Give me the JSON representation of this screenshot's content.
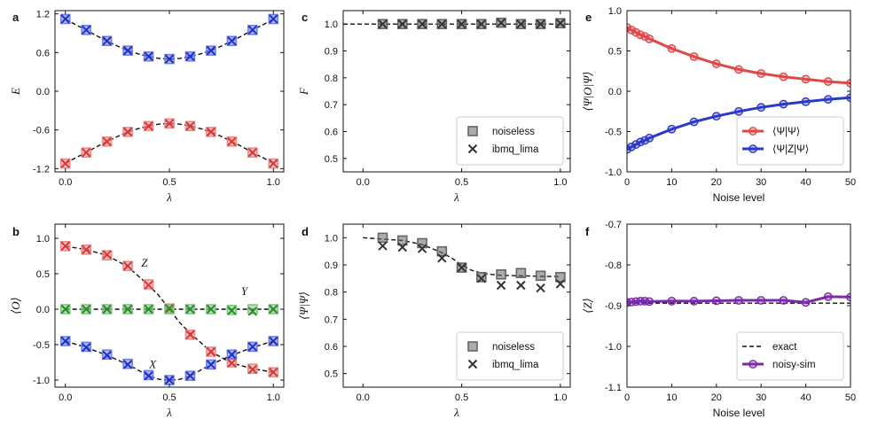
{
  "figure": {
    "panels": [
      "a",
      "b",
      "c",
      "d",
      "e",
      "f"
    ]
  },
  "chart_data": [
    {
      "id": "a",
      "letter": "a",
      "type": "scatter",
      "xlabel": "λ",
      "ylabel": "E",
      "xlim": [
        -0.05,
        1.05
      ],
      "ylim": [
        -1.25,
        1.25
      ],
      "xticks": [
        0.0,
        0.5,
        1.0
      ],
      "xtick_labels": [
        "0.0",
        "0.5",
        "1.0"
      ],
      "yticks": [
        -1.2,
        -0.6,
        0.0,
        0.6,
        1.2
      ],
      "ytick_labels": [
        "-1.2",
        "-0.6",
        "0.0",
        "0.6",
        "1.2"
      ],
      "series": [
        {
          "name": "exact-upper",
          "style": "dash",
          "color": "#111111",
          "x": [
            0.0,
            0.05,
            0.1,
            0.15,
            0.2,
            0.25,
            0.3,
            0.35,
            0.4,
            0.45,
            0.5,
            0.55,
            0.6,
            0.65,
            0.7,
            0.75,
            0.8,
            0.85,
            0.9,
            0.95,
            1.0
          ],
          "y": [
            1.12,
            1.03,
            0.95,
            0.86,
            0.78,
            0.7,
            0.63,
            0.58,
            0.54,
            0.51,
            0.5,
            0.51,
            0.54,
            0.58,
            0.63,
            0.7,
            0.78,
            0.86,
            0.95,
            1.03,
            1.12
          ]
        },
        {
          "name": "exact-lower",
          "style": "dash",
          "color": "#111111",
          "x": [
            0.0,
            0.05,
            0.1,
            0.15,
            0.2,
            0.25,
            0.3,
            0.35,
            0.4,
            0.45,
            0.5,
            0.55,
            0.6,
            0.65,
            0.7,
            0.75,
            0.8,
            0.85,
            0.9,
            0.95,
            1.0
          ],
          "y": [
            -1.12,
            -1.03,
            -0.95,
            -0.86,
            -0.78,
            -0.7,
            -0.63,
            -0.58,
            -0.54,
            -0.51,
            -0.5,
            -0.51,
            -0.54,
            -0.58,
            -0.63,
            -0.7,
            -0.78,
            -0.86,
            -0.95,
            -1.03,
            -1.12
          ]
        },
        {
          "name": "upper-squares",
          "style": "square",
          "color": "#6f7fe6",
          "x": [
            0.0,
            0.1,
            0.2,
            0.3,
            0.4,
            0.5,
            0.6,
            0.7,
            0.8,
            0.9,
            1.0
          ],
          "y": [
            1.12,
            0.95,
            0.78,
            0.63,
            0.54,
            0.5,
            0.54,
            0.63,
            0.78,
            0.95,
            1.12
          ]
        },
        {
          "name": "upper-crosses",
          "style": "cross",
          "color": "#1f2fc7",
          "x": [
            0.0,
            0.1,
            0.2,
            0.3,
            0.4,
            0.5,
            0.6,
            0.7,
            0.8,
            0.9,
            1.0
          ],
          "y": [
            1.12,
            0.95,
            0.78,
            0.63,
            0.54,
            0.5,
            0.54,
            0.63,
            0.78,
            0.95,
            1.12
          ]
        },
        {
          "name": "lower-squares",
          "style": "square",
          "color": "#ee8a8a",
          "x": [
            0.0,
            0.1,
            0.2,
            0.3,
            0.4,
            0.5,
            0.6,
            0.7,
            0.8,
            0.9,
            1.0
          ],
          "y": [
            -1.12,
            -0.95,
            -0.78,
            -0.63,
            -0.54,
            -0.5,
            -0.54,
            -0.63,
            -0.78,
            -0.95,
            -1.12
          ]
        },
        {
          "name": "lower-crosses",
          "style": "cross",
          "color": "#d93636",
          "x": [
            0.0,
            0.1,
            0.2,
            0.3,
            0.4,
            0.5,
            0.6,
            0.7,
            0.8,
            0.9,
            1.0
          ],
          "y": [
            -1.12,
            -0.95,
            -0.78,
            -0.63,
            -0.54,
            -0.5,
            -0.54,
            -0.63,
            -0.78,
            -0.95,
            -1.12
          ]
        }
      ],
      "annotations": []
    },
    {
      "id": "b",
      "letter": "b",
      "type": "scatter",
      "xlabel": "λ",
      "ylabel": "⟨O⟩",
      "xlim": [
        -0.05,
        1.05
      ],
      "ylim": [
        -1.1,
        1.2
      ],
      "xticks": [
        0.0,
        0.5,
        1.0
      ],
      "xtick_labels": [
        "0.0",
        "0.5",
        "1.0"
      ],
      "yticks": [
        -1.0,
        -0.5,
        0.0,
        0.5,
        1.0
      ],
      "ytick_labels": [
        "-1.0",
        "-0.5",
        "0.0",
        "0.5",
        "1.0"
      ],
      "series": [
        {
          "name": "Z-exact",
          "style": "dash",
          "color": "#111111",
          "x": [
            0.0,
            0.1,
            0.2,
            0.3,
            0.4,
            0.45,
            0.5,
            0.55,
            0.6,
            0.7,
            0.8,
            0.9,
            1.0
          ],
          "y": [
            0.89,
            0.84,
            0.76,
            0.6,
            0.34,
            0.19,
            0.0,
            -0.19,
            -0.34,
            -0.6,
            -0.76,
            -0.84,
            -0.89
          ]
        },
        {
          "name": "X-exact",
          "style": "dash",
          "color": "#111111",
          "x": [
            0.0,
            0.1,
            0.2,
            0.3,
            0.4,
            0.45,
            0.5,
            0.55,
            0.6,
            0.7,
            0.8,
            0.9,
            1.0
          ],
          "y": [
            -0.45,
            -0.54,
            -0.65,
            -0.78,
            -0.94,
            -0.99,
            -1.0,
            -0.99,
            -0.94,
            -0.78,
            -0.65,
            -0.54,
            -0.45
          ]
        },
        {
          "name": "Y-exact",
          "style": "dash",
          "color": "#111111",
          "x": [
            0.0,
            1.0
          ],
          "y": [
            0.0,
            0.0
          ]
        },
        {
          "name": "Z-squares",
          "style": "square",
          "color": "#ee8a8a",
          "x": [
            0.0,
            0.1,
            0.2,
            0.3,
            0.4,
            0.5,
            0.6,
            0.7,
            0.8,
            0.9,
            1.0
          ],
          "y": [
            0.89,
            0.84,
            0.76,
            0.61,
            0.35,
            0.01,
            -0.36,
            -0.6,
            -0.75,
            -0.84,
            -0.89
          ]
        },
        {
          "name": "Z-crosses",
          "style": "cross",
          "color": "#d93636",
          "x": [
            0.0,
            0.1,
            0.2,
            0.3,
            0.4,
            0.5,
            0.6,
            0.7,
            0.8,
            0.9,
            1.0
          ],
          "y": [
            0.89,
            0.84,
            0.77,
            0.61,
            0.34,
            0.0,
            -0.36,
            -0.6,
            -0.76,
            -0.85,
            -0.89
          ]
        },
        {
          "name": "X-squares",
          "style": "square",
          "color": "#6f7fe6",
          "x": [
            0.0,
            0.1,
            0.2,
            0.3,
            0.4,
            0.5,
            0.6,
            0.7,
            0.8,
            0.9,
            1.0
          ],
          "y": [
            -0.45,
            -0.53,
            -0.64,
            -0.77,
            -0.93,
            -1.0,
            -0.94,
            -0.78,
            -0.64,
            -0.53,
            -0.45
          ]
        },
        {
          "name": "X-crosses",
          "style": "cross",
          "color": "#1f2fc7",
          "x": [
            0.0,
            0.1,
            0.2,
            0.3,
            0.4,
            0.5,
            0.6,
            0.7,
            0.8,
            0.9,
            1.0
          ],
          "y": [
            -0.45,
            -0.54,
            -0.65,
            -0.78,
            -0.94,
            -1.0,
            -0.94,
            -0.78,
            -0.64,
            -0.53,
            -0.45
          ]
        },
        {
          "name": "Y-squares",
          "style": "square",
          "color": "#7fc77f",
          "x": [
            0.0,
            0.1,
            0.2,
            0.3,
            0.4,
            0.5,
            0.6,
            0.7,
            0.8,
            0.9,
            1.0
          ],
          "y": [
            0.0,
            0.0,
            0.0,
            0.0,
            0.0,
            0.0,
            0.0,
            0.0,
            -0.01,
            0.0,
            0.0
          ]
        },
        {
          "name": "Y-crosses",
          "style": "cross",
          "color": "#2f8a2f",
          "x": [
            0.0,
            0.1,
            0.2,
            0.3,
            0.4,
            0.5,
            0.6,
            0.7,
            0.8,
            0.9,
            1.0
          ],
          "y": [
            0.0,
            0.0,
            0.0,
            0.0,
            0.0,
            0.01,
            0.0,
            0.0,
            -0.02,
            -0.03,
            0.0
          ]
        }
      ],
      "annotations": [
        {
          "text": "Z",
          "x": 0.38,
          "y": 0.6
        },
        {
          "text": "Y",
          "x": 0.86,
          "y": 0.2
        },
        {
          "text": "X",
          "x": 0.42,
          "y": -0.83
        }
      ]
    },
    {
      "id": "c",
      "letter": "c",
      "type": "scatter",
      "xlabel": "λ",
      "ylabel": "F",
      "xlim": [
        -0.1,
        1.05
      ],
      "ylim": [
        0.45,
        1.05
      ],
      "xticks": [
        0.0,
        0.5,
        1.0
      ],
      "xtick_labels": [
        "0.0",
        "0.5",
        "1.0"
      ],
      "yticks": [
        0.5,
        0.6,
        0.7,
        0.8,
        0.9,
        1.0
      ],
      "ytick_labels": [
        "0.5",
        "0.6",
        "0.7",
        "0.8",
        "0.9",
        "1.0"
      ],
      "series": [
        {
          "name": "exact",
          "style": "dash",
          "color": "#111111",
          "x": [
            -0.1,
            1.05
          ],
          "y": [
            1.0,
            1.0
          ]
        },
        {
          "name": "noiseless",
          "style": "square",
          "color": "#666666",
          "x": [
            0.1,
            0.2,
            0.3,
            0.4,
            0.5,
            0.6,
            0.7,
            0.8,
            0.9,
            1.0
          ],
          "y": [
            1.0,
            1.0,
            1.0,
            1.0,
            1.0,
            1.0,
            1.005,
            1.0,
            1.0,
            1.003
          ]
        },
        {
          "name": "ibmq_lima",
          "style": "cross",
          "color": "#333333",
          "x": [
            0.1,
            0.2,
            0.3,
            0.4,
            0.5,
            0.6,
            0.7,
            0.8,
            0.9,
            1.0
          ],
          "y": [
            1.0,
            1.0,
            1.0,
            1.0,
            1.0,
            1.0,
            1.005,
            1.0,
            1.0,
            1.003
          ]
        }
      ],
      "legend": {
        "position": "lower-right",
        "entries": [
          {
            "label": "noiseless",
            "style": "square",
            "color": "#666666"
          },
          {
            "label": "ibmq_lima",
            "style": "cross",
            "color": "#333333"
          }
        ]
      },
      "annotations": []
    },
    {
      "id": "d",
      "letter": "d",
      "type": "scatter",
      "xlabel": "λ",
      "ylabel": "⟨Ψ|Ψ⟩",
      "xlim": [
        -0.1,
        1.05
      ],
      "ylim": [
        0.45,
        1.05
      ],
      "xticks": [
        0.0,
        0.5,
        1.0
      ],
      "xtick_labels": [
        "0.0",
        "0.5",
        "1.0"
      ],
      "yticks": [
        0.5,
        0.6,
        0.7,
        0.8,
        0.9,
        1.0
      ],
      "ytick_labels": [
        "0.5",
        "0.6",
        "0.7",
        "0.8",
        "0.9",
        "1.0"
      ],
      "series": [
        {
          "name": "exact",
          "style": "dash",
          "color": "#111111",
          "x": [
            0.0,
            0.1,
            0.2,
            0.3,
            0.35,
            0.4,
            0.45,
            0.5,
            0.55,
            0.6,
            0.65,
            0.7,
            0.8,
            0.9,
            1.0
          ],
          "y": [
            1.0,
            0.995,
            0.99,
            0.975,
            0.96,
            0.945,
            0.925,
            0.9,
            0.88,
            0.87,
            0.865,
            0.862,
            0.86,
            0.858,
            0.857
          ]
        },
        {
          "name": "noiseless",
          "style": "square",
          "color": "#666666",
          "x": [
            0.1,
            0.2,
            0.3,
            0.4,
            0.5,
            0.6,
            0.7,
            0.8,
            0.9,
            1.0
          ],
          "y": [
            1.0,
            0.99,
            0.98,
            0.95,
            0.89,
            0.855,
            0.865,
            0.87,
            0.86,
            0.855
          ]
        },
        {
          "name": "ibmq_lima",
          "style": "cross",
          "color": "#333333",
          "x": [
            0.1,
            0.2,
            0.3,
            0.4,
            0.5,
            0.6,
            0.7,
            0.8,
            0.9,
            1.0
          ],
          "y": [
            0.97,
            0.965,
            0.96,
            0.925,
            0.89,
            0.85,
            0.825,
            0.825,
            0.815,
            0.83
          ]
        }
      ],
      "legend": {
        "position": "lower-right",
        "entries": [
          {
            "label": "noiseless",
            "style": "square",
            "color": "#666666"
          },
          {
            "label": "ibmq_lima",
            "style": "cross",
            "color": "#333333"
          }
        ]
      },
      "annotations": []
    },
    {
      "id": "e",
      "letter": "e",
      "type": "line",
      "xlabel": "Noise level",
      "ylabel": "⟨Ψ|O|Ψ⟩",
      "xlim": [
        0,
        50
      ],
      "ylim": [
        -1.0,
        1.0
      ],
      "xticks": [
        0,
        10,
        20,
        30,
        40,
        50
      ],
      "xtick_labels": [
        "0",
        "10",
        "20",
        "30",
        "40",
        "50"
      ],
      "yticks": [
        -1.0,
        -0.5,
        0.0,
        0.5,
        1.0
      ],
      "ytick_labels": [
        "-1.0",
        "-0.5",
        "0.0",
        "0.5",
        "1.0"
      ],
      "series": [
        {
          "name": "⟨Ψ|Ψ⟩",
          "style": "line-circle",
          "color": "#e04848",
          "x": [
            0,
            1,
            2,
            3,
            4,
            5,
            10,
            15,
            20,
            25,
            30,
            35,
            40,
            45,
            50
          ],
          "y": [
            0.79,
            0.76,
            0.73,
            0.7,
            0.68,
            0.65,
            0.53,
            0.43,
            0.34,
            0.27,
            0.22,
            0.18,
            0.15,
            0.12,
            0.1
          ]
        },
        {
          "name": "⟨Ψ|Z|Ψ⟩",
          "style": "line-circle",
          "color": "#2a39c9",
          "x": [
            0,
            1,
            2,
            3,
            4,
            5,
            10,
            15,
            20,
            25,
            30,
            35,
            40,
            45,
            50
          ],
          "y": [
            -0.72,
            -0.69,
            -0.66,
            -0.63,
            -0.61,
            -0.58,
            -0.47,
            -0.38,
            -0.31,
            -0.25,
            -0.2,
            -0.16,
            -0.13,
            -0.1,
            -0.08
          ]
        }
      ],
      "legend": {
        "position": "lower-right",
        "entries": [
          {
            "label": "⟨Ψ|Ψ⟩",
            "style": "line-circle",
            "color": "#e04848"
          },
          {
            "label": "⟨Ψ|Z|Ψ⟩",
            "style": "line-circle",
            "color": "#2a39c9"
          }
        ]
      },
      "annotations": []
    },
    {
      "id": "f",
      "letter": "f",
      "type": "line",
      "xlabel": "Noise level",
      "ylabel": "⟨Z⟩",
      "xlim": [
        0,
        50
      ],
      "ylim": [
        -1.1,
        -0.7
      ],
      "xticks": [
        0,
        10,
        20,
        30,
        40,
        50
      ],
      "xtick_labels": [
        "0",
        "10",
        "20",
        "30",
        "40",
        "50"
      ],
      "yticks": [
        -1.1,
        -1.0,
        -0.9,
        -0.8,
        -0.7
      ],
      "ytick_labels": [
        "-1.1",
        "-1.0",
        "-0.9",
        "-0.8",
        "-0.7"
      ],
      "series": [
        {
          "name": "exact",
          "style": "dash",
          "color": "#111111",
          "x": [
            0,
            50
          ],
          "y": [
            -0.894,
            -0.894
          ]
        },
        {
          "name": "noisy-sim",
          "style": "line-circle",
          "color": "#7a2ba8",
          "x": [
            0,
            1,
            2,
            3,
            4,
            5,
            10,
            15,
            20,
            25,
            30,
            35,
            40,
            45,
            50
          ],
          "y": [
            -0.892,
            -0.891,
            -0.89,
            -0.889,
            -0.889,
            -0.89,
            -0.889,
            -0.889,
            -0.888,
            -0.887,
            -0.887,
            -0.887,
            -0.892,
            -0.878,
            -0.879
          ]
        }
      ],
      "legend": {
        "position": "lower-right",
        "entries": [
          {
            "label": "exact",
            "style": "dash",
            "color": "#111111"
          },
          {
            "label": "noisy-sim",
            "style": "line-circle",
            "color": "#7a2ba8"
          }
        ]
      },
      "annotations": []
    }
  ]
}
